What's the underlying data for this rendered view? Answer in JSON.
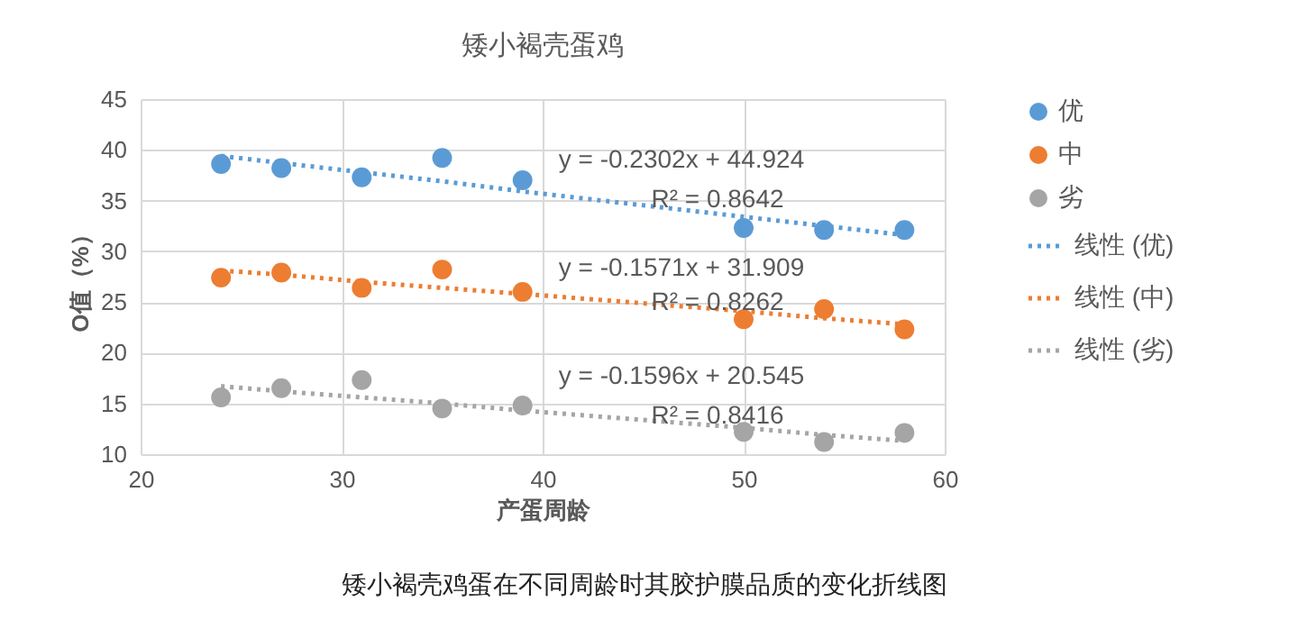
{
  "chart_data": {
    "type": "scatter",
    "title": "矮小褐壳蛋鸡",
    "xlabel": "产蛋周龄",
    "ylabel": "O值（%）",
    "x": [
      24,
      27,
      31,
      35,
      39,
      50,
      54,
      58
    ],
    "series": [
      {
        "name": "优",
        "color": "#5b9bd5",
        "marker": "circle",
        "values": [
          38.6,
          38.2,
          37.3,
          39.2,
          37.0,
          32.3,
          32.1,
          32.1
        ]
      },
      {
        "name": "中",
        "color": "#ed7d31",
        "marker": "circle",
        "values": [
          27.4,
          27.9,
          26.4,
          28.2,
          26.0,
          23.3,
          24.3,
          22.3
        ]
      },
      {
        "name": "劣",
        "color": "#a5a5a5",
        "marker": "circle",
        "values": [
          15.6,
          16.5,
          17.3,
          14.5,
          14.8,
          12.2,
          11.2,
          12.1
        ]
      },
      {
        "name": "线性 (优)",
        "type": "line",
        "color": "#5b9bd5",
        "values": [
          39.4,
          38.7,
          37.8,
          36.9,
          35.9,
          33.4,
          32.5,
          31.6
        ]
      },
      {
        "name": "线性 (中)",
        "type": "line",
        "color": "#ed7d31",
        "values": [
          28.1,
          27.7,
          27.0,
          26.4,
          25.8,
          24.1,
          23.4,
          22.8
        ]
      },
      {
        "name": "线性 (劣)",
        "type": "line",
        "color": "#a5a5a5",
        "values": [
          16.7,
          16.2,
          15.6,
          15.0,
          14.3,
          12.6,
          11.9,
          11.3
        ]
      }
    ],
    "xlim": [
      20,
      60
    ],
    "xticks": [
      20,
      30,
      40,
      50,
      60
    ],
    "ylim": [
      10,
      45
    ],
    "yticks": [
      10,
      15,
      20,
      25,
      30,
      35,
      40,
      45
    ],
    "grid": true,
    "legend": "right",
    "line_style": "dotted",
    "annotations": [
      "y = -0.2302x + 44.924",
      "R² = 0.8642",
      "y = -0.1571x + 31.909",
      "R² = 0.8262",
      "y = -0.1596x + 20.545",
      "R² = 0.8416",
      "矮小褐壳鸡蛋在不同周龄时其胶护膜品质的变化折线图"
    ]
  }
}
